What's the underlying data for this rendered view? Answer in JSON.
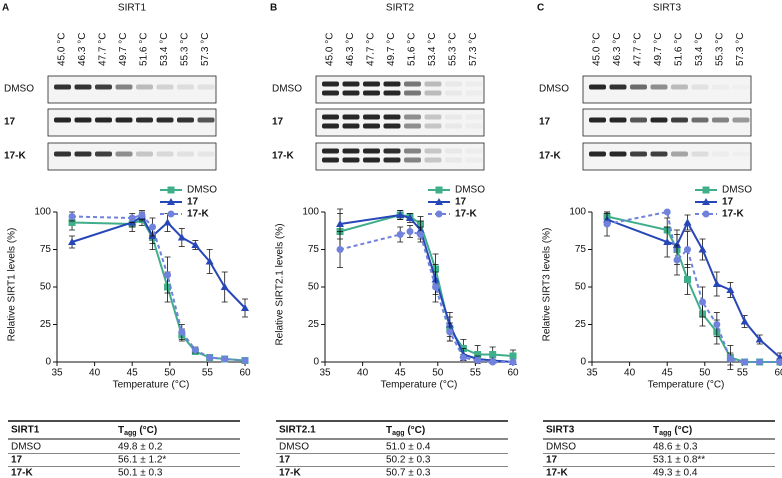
{
  "panels": [
    {
      "label": "A",
      "protein": "SIRT1",
      "temperatures": [
        "45.0 °C",
        "46.3 °C",
        "47.7 °C",
        "49.7 °C",
        "51.6 °C",
        "53.4 °C",
        "55.3 °C",
        "57.3 °C"
      ],
      "blot_rows": [
        "DMSO",
        "17",
        "17-K"
      ],
      "table": {
        "header": [
          "SIRT1",
          {
            "main": "T",
            "sub": "agg",
            "rest": " (°C)"
          }
        ],
        "rows": [
          [
            "DMSO",
            "49.8 ± 0.2"
          ],
          [
            "17",
            "56.1 ± 1.2*"
          ],
          [
            "17-K",
            "50.1 ± 0.3"
          ]
        ]
      }
    },
    {
      "label": "B",
      "protein": "SIRT2",
      "temperatures": [
        "45.0 °C",
        "46.3 °C",
        "47.7 °C",
        "49.7 °C",
        "51.6 °C",
        "53.4 °C",
        "55.3 °C",
        "57.3 °C"
      ],
      "blot_rows": [
        "DMSO",
        "17",
        "17-K"
      ],
      "table": {
        "header": [
          "SIRT2.1",
          {
            "main": "T",
            "sub": "agg",
            "rest": " (°C)"
          }
        ],
        "rows": [
          [
            "DMSO",
            "51.0 ± 0.4"
          ],
          [
            "17",
            "50.2 ± 0.3"
          ],
          [
            "17-K",
            "50.7 ± 0.3"
          ]
        ]
      }
    },
    {
      "label": "C",
      "protein": "SIRT3",
      "temperatures": [
        "45.0 °C",
        "46.3 °C",
        "47.7 °C",
        "49.7 °C",
        "51.6 °C",
        "53.4 °C",
        "55.3 °C",
        "57.3 °C"
      ],
      "blot_rows": [
        "DMSO",
        "17",
        "17-K"
      ],
      "table": {
        "header": [
          "SIRT3",
          {
            "main": "T",
            "sub": "agg",
            "rest": " (°C)"
          }
        ],
        "rows": [
          [
            "DMSO",
            "48.6 ± 0.3"
          ],
          [
            "17",
            "53.1 ± 0.8**"
          ],
          [
            "17-K",
            "49.3 ± 0.4"
          ]
        ]
      }
    }
  ],
  "chart_data": [
    {
      "type": "line",
      "x_label": "Temperature (°C)",
      "y_label": "Relative SIRT1 levels (%)",
      "xlim": [
        35,
        60
      ],
      "ylim": [
        0,
        110
      ],
      "xticks": [
        35,
        40,
        45,
        50,
        55,
        60
      ],
      "yticks": [
        0,
        25,
        50,
        75,
        100
      ],
      "x": [
        37,
        45,
        46.3,
        47.7,
        49.7,
        51.6,
        53.4,
        55.3,
        57.3,
        60
      ],
      "series": [
        {
          "name": "DMSO",
          "color": "#3fae8a",
          "marker": "square",
          "dashed": false,
          "values": [
            93,
            92,
            95,
            83,
            50,
            18,
            7,
            3,
            2,
            1
          ],
          "errors": [
            5,
            5,
            4,
            8,
            10,
            4,
            2,
            1,
            1,
            1
          ]
        },
        {
          "name": "17",
          "color": "#2747b8",
          "marker": "triangle",
          "dashed": false,
          "values": [
            80,
            93,
            97,
            84,
            93,
            83,
            78,
            67,
            50,
            36
          ],
          "errors": [
            4,
            3,
            3,
            5,
            6,
            6,
            3,
            8,
            10,
            6
          ]
        },
        {
          "name": "17-K",
          "color": "#7082dc",
          "marker": "circle",
          "dashed": true,
          "values": [
            97,
            96,
            98,
            90,
            58,
            20,
            8,
            3,
            2,
            1
          ],
          "errors": [
            3,
            3,
            3,
            6,
            12,
            5,
            2,
            1,
            1,
            1
          ]
        }
      ]
    },
    {
      "type": "line",
      "x_label": "Temperature (°C)",
      "y_label": "Relative SIRT2.1 levels (%)",
      "xlim": [
        35,
        60
      ],
      "ylim": [
        0,
        110
      ],
      "xticks": [
        35,
        40,
        45,
        50,
        55,
        60
      ],
      "yticks": [
        0,
        25,
        50,
        75,
        100
      ],
      "x": [
        37,
        45,
        46.3,
        47.7,
        49.7,
        51.6,
        53.4,
        55.3,
        57.3,
        60
      ],
      "series": [
        {
          "name": "DMSO",
          "color": "#3fae8a",
          "marker": "square",
          "dashed": false,
          "values": [
            87,
            98,
            97,
            92,
            62,
            22,
            9,
            5,
            5,
            4
          ],
          "errors": [
            12,
            3,
            2,
            5,
            10,
            8,
            6,
            6,
            5,
            4
          ]
        },
        {
          "name": "17",
          "color": "#2747b8",
          "marker": "triangle",
          "dashed": false,
          "values": [
            92,
            98,
            96,
            88,
            55,
            25,
            5,
            2,
            1,
            0
          ],
          "errors": [
            10,
            3,
            3,
            6,
            10,
            8,
            4,
            2,
            1,
            0
          ]
        },
        {
          "name": "17-K",
          "color": "#7082dc",
          "marker": "circle",
          "dashed": true,
          "values": [
            75,
            85,
            87,
            85,
            50,
            20,
            3,
            1,
            0,
            0
          ],
          "errors": [
            12,
            5,
            4,
            5,
            10,
            6,
            2,
            1,
            0,
            0
          ]
        }
      ]
    },
    {
      "type": "line",
      "x_label": "Temperature (°C)",
      "y_label": "Relative SIRT3 levels (%)",
      "xlim": [
        35,
        60
      ],
      "ylim": [
        0,
        110
      ],
      "xticks": [
        35,
        40,
        45,
        50,
        55,
        60
      ],
      "yticks": [
        0,
        25,
        50,
        75,
        100
      ],
      "x": [
        37,
        45,
        46.3,
        47.7,
        49.7,
        51.6,
        53.4,
        55.3,
        57.3,
        60
      ],
      "series": [
        {
          "name": "DMSO",
          "color": "#3fae8a",
          "marker": "square",
          "dashed": false,
          "values": [
            97,
            88,
            75,
            55,
            32,
            20,
            3,
            0,
            0,
            0
          ],
          "errors": [
            3,
            8,
            10,
            10,
            8,
            8,
            8,
            0,
            0,
            0
          ]
        },
        {
          "name": "17",
          "color": "#2747b8",
          "marker": "triangle",
          "dashed": false,
          "values": [
            95,
            80,
            78,
            93,
            75,
            52,
            48,
            27,
            15,
            3
          ],
          "errors": [
            4,
            10,
            10,
            5,
            7,
            8,
            5,
            4,
            3,
            3
          ]
        },
        {
          "name": "17-K",
          "color": "#7082dc",
          "marker": "circle",
          "dashed": true,
          "values": [
            92,
            100,
            68,
            75,
            40,
            25,
            2,
            0,
            0,
            0
          ],
          "errors": [
            8,
            0,
            10,
            12,
            10,
            8,
            4,
            0,
            0,
            0
          ]
        }
      ]
    }
  ]
}
